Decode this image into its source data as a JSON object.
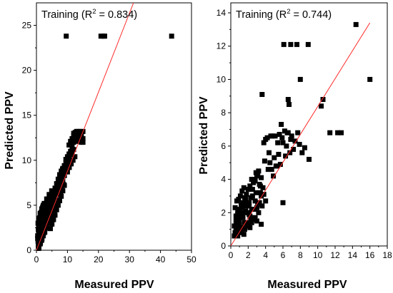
{
  "chart_data": [
    {
      "type": "scatter",
      "title_prefix": "Training (R",
      "title_sup": "2",
      "title_suffix": " = 0.834)",
      "xlabel": "Measured PPV",
      "ylabel": "Predicted PPV",
      "xlim": [
        0,
        50
      ],
      "ylim": [
        0,
        27.5
      ],
      "xticks": [
        0,
        10,
        20,
        30,
        40,
        50
      ],
      "yticks": [
        0,
        5,
        10,
        15,
        20,
        25
      ],
      "grid": false,
      "fit_line": {
        "x": [
          0,
          31.3
        ],
        "y": [
          0,
          27.5
        ]
      },
      "series": [
        {
          "marker": "square",
          "x": [
            9.6,
            20.8,
            21.5,
            22.0,
            43.6,
            0.6,
            1.1,
            1.6,
            2.1,
            2.6,
            3.1,
            3.6,
            4.1,
            4.6,
            5.1,
            5.6,
            6.1,
            6.6,
            7.1,
            0.8,
            1.3,
            1.8,
            2.3,
            2.8,
            3.3,
            3.8,
            4.3,
            4.8,
            5.3,
            5.8,
            6.3,
            6.8,
            7.3,
            7.8,
            8.3,
            0.5,
            1.0,
            1.5,
            2.0,
            2.5,
            3.0,
            3.5,
            4.0,
            4.5,
            5.0,
            5.5,
            6.0,
            6.5,
            7.0,
            7.5,
            0.7,
            1.2,
            1.7,
            2.2,
            2.7,
            3.2,
            3.7,
            4.2,
            4.7,
            5.2,
            5.7,
            6.2,
            0.4,
            0.9,
            1.4,
            1.9,
            2.4,
            2.9,
            3.4,
            3.9,
            4.4,
            4.9,
            0.6,
            1.1,
            1.6,
            2.1,
            2.6,
            3.1,
            3.6,
            4.1,
            0.8,
            1.3,
            1.8,
            2.3,
            2.8,
            3.3,
            0.5,
            1.0,
            1.5,
            2.0,
            2.5,
            0.7,
            1.2,
            1.7,
            2.2,
            0.4,
            0.9,
            1.4,
            0.6,
            1.1,
            4.5,
            5.0,
            5.5,
            6.0,
            6.5,
            7.0,
            7.5,
            8.0,
            8.5,
            9.0,
            5.8,
            6.3,
            6.8,
            7.3,
            7.8,
            8.3,
            8.8,
            7.0,
            7.5,
            8.0,
            8.5,
            9.0,
            9.5,
            10.0,
            10.5,
            8.0,
            8.5,
            9.0,
            9.5,
            10.0,
            10.5,
            11.0,
            8.4,
            9.0,
            9.6,
            10.2,
            10.8,
            11.4,
            12.0,
            9.5,
            10.0,
            10.5,
            11.0,
            11.5,
            10.0,
            10.6,
            11.2,
            11.8,
            12.4,
            10.5,
            11.0,
            11.5,
            12.0,
            12.5,
            13.0,
            13.5,
            14.0,
            14.5,
            15.0,
            12.5,
            13.0,
            13.5,
            14.0,
            14.5,
            15.0,
            11.5,
            12.0,
            12.5,
            13.0,
            13.5,
            14.0,
            14.5,
            15.0,
            12.0,
            12.5,
            13.0,
            13.5,
            14.0,
            14.5
          ],
          "y": [
            23.8,
            23.8,
            23.8,
            23.8,
            23.8,
            0.6,
            1.2,
            1.7,
            2.2,
            2.8,
            3.3,
            3.9,
            4.4,
            5.0,
            5.5,
            6.0,
            6.6,
            7.1,
            7.6,
            0.3,
            0.8,
            1.3,
            1.9,
            2.4,
            2.9,
            3.5,
            4.0,
            4.6,
            5.1,
            5.6,
            6.2,
            6.7,
            7.2,
            7.8,
            8.2,
            1.0,
            1.5,
            2.1,
            2.6,
            3.1,
            3.7,
            4.2,
            4.8,
            5.3,
            5.8,
            6.3,
            6.9,
            7.4,
            7.9,
            8.4,
            0.2,
            0.7,
            1.1,
            1.6,
            2.0,
            2.5,
            3.0,
            3.4,
            3.9,
            4.4,
            4.8,
            5.3,
            1.6,
            2.2,
            2.8,
            3.4,
            4.0,
            4.5,
            5.1,
            5.6,
            6.1,
            6.6,
            2.3,
            2.9,
            3.5,
            4.0,
            4.6,
            5.2,
            5.7,
            6.2,
            2.8,
            3.4,
            4.1,
            4.7,
            5.2,
            5.7,
            3.0,
            3.6,
            4.2,
            4.8,
            5.2,
            3.5,
            4.1,
            4.6,
            5.0,
            1.3,
            1.9,
            2.5,
            0.4,
            1.0,
            2.4,
            2.9,
            3.4,
            3.9,
            4.5,
            5.0,
            5.5,
            6.0,
            6.6,
            7.2,
            4.0,
            4.5,
            5.1,
            5.6,
            6.2,
            6.7,
            7.3,
            6.2,
            6.8,
            7.3,
            7.8,
            8.3,
            8.8,
            9.3,
            9.8,
            8.8,
            9.1,
            9.4,
            9.7,
            10.0,
            10.3,
            10.6,
            9.0,
            9.4,
            9.8,
            10.2,
            10.6,
            10.9,
            11.2,
            10.1,
            10.4,
            10.7,
            11.0,
            11.3,
            8.7,
            9.2,
            9.6,
            10.0,
            10.4,
            11.7,
            12.1,
            12.4,
            12.7,
            13.0,
            13.2,
            13.2,
            13.2,
            13.2,
            13.2,
            12.3,
            12.4,
            12.5,
            12.6,
            12.5,
            12.4,
            11.8,
            12.0,
            12.1,
            12.2,
            12.2,
            12.1,
            12.0,
            12.0,
            13.0,
            13.1,
            13.2,
            13.1,
            13.0,
            12.9
          ]
        }
      ]
    },
    {
      "type": "scatter",
      "title_prefix": "Training (R",
      "title_sup": "2",
      "title_suffix": " = 0.744)",
      "xlabel": "Measured PPV",
      "ylabel": "Predicted PPV",
      "xlim": [
        0,
        18
      ],
      "ylim": [
        0,
        14.6
      ],
      "xticks": [
        0,
        2,
        4,
        6,
        8,
        10,
        12,
        14,
        16,
        18
      ],
      "yticks": [
        0,
        2,
        4,
        6,
        8,
        10,
        12,
        14
      ],
      "grid": false,
      "fit_line": {
        "x": [
          0,
          16.0
        ],
        "y": [
          0,
          13.4
        ]
      },
      "series": [
        {
          "marker": "square",
          "x": [
            6.1,
            6.9,
            7.6,
            8.9,
            14.4,
            16.0,
            8.0,
            3.6,
            6.6,
            6.7,
            10.6,
            10.4,
            11.4,
            12.3,
            12.7,
            7.7,
            6.5,
            5.6,
            5.1,
            4.8,
            4.6,
            4.2,
            4.0,
            3.8,
            5.8,
            6.2,
            6.0,
            6.6,
            7.0,
            7.4,
            7.9,
            8.2,
            8.5,
            9.0,
            7.2,
            6.8,
            6.3,
            5.5,
            5.0,
            4.4,
            3.9,
            4.5,
            5.2,
            5.4,
            5.9,
            6.4,
            6.9,
            4.7,
            3.5,
            3.2,
            3.0,
            2.8,
            2.6,
            2.4,
            2.2,
            2.0,
            1.8,
            1.6,
            1.4,
            1.2,
            1.0,
            0.8,
            0.6,
            0.4,
            0.5,
            0.7,
            0.9,
            1.1,
            1.3,
            1.5,
            1.7,
            1.9,
            2.1,
            2.3,
            2.5,
            2.7,
            2.9,
            3.1,
            3.3,
            3.4,
            2.0,
            2.5,
            3.0,
            3.5,
            1.5,
            1.0,
            0.6,
            0.8,
            1.2,
            1.6,
            2.2,
            2.6,
            3.0,
            3.3,
            2.8,
            2.4,
            1.8,
            1.4,
            1.0,
            0.5,
            0.7,
            1.1,
            1.5,
            1.9,
            2.3,
            2.7,
            3.1,
            3.5,
            3.7,
            1.3,
            1.7,
            2.1,
            0.9,
            0.6,
            0.4,
            0.8,
            1.2,
            1.6,
            2.0,
            2.4,
            2.8,
            3.2,
            3.6,
            4.0,
            3.8,
            3.4,
            2.9,
            2.5,
            2.1,
            1.7,
            1.3,
            0.9,
            4.3,
            4.9,
            5.3,
            5.7,
            6.0,
            0.5,
            0.7,
            1.0,
            1.4,
            1.8,
            2.2
          ],
          "y": [
            12.1,
            12.1,
            12.1,
            12.1,
            13.3,
            10.0,
            10.0,
            9.1,
            8.8,
            8.5,
            8.8,
            8.4,
            6.8,
            6.8,
            6.8,
            6.8,
            6.8,
            6.7,
            6.6,
            6.6,
            6.6,
            6.5,
            6.4,
            6.2,
            7.3,
            6.9,
            6.2,
            6.8,
            6.6,
            6.3,
            6.1,
            5.6,
            5.9,
            5.2,
            5.8,
            5.6,
            5.4,
            5.5,
            5.3,
            5.6,
            5.1,
            5.0,
            4.8,
            6.2,
            6.5,
            6.0,
            6.4,
            4.6,
            4.1,
            4.5,
            4.2,
            3.9,
            3.8,
            4.0,
            3.6,
            3.4,
            3.1,
            2.9,
            2.6,
            2.5,
            2.2,
            1.9,
            1.5,
            1.2,
            2.3,
            2.7,
            2.8,
            3.0,
            3.3,
            3.5,
            2.8,
            2.6,
            2.4,
            2.9,
            3.4,
            4.0,
            4.4,
            4.3,
            3.7,
            3.2,
            2.0,
            1.7,
            1.5,
            1.3,
            1.0,
            1.5,
            1.8,
            2.1,
            1.8,
            1.4,
            1.1,
            1.6,
            2.3,
            2.6,
            2.7,
            2.2,
            2.0,
            1.7,
            1.2,
            0.8,
            1.0,
            0.9,
            0.7,
            1.3,
            1.6,
            2.2,
            2.5,
            3.0,
            3.5,
            2.3,
            2.1,
            1.9,
            1.6,
            1.1,
            0.6,
            0.6,
            0.8,
            1.0,
            1.2,
            1.4,
            1.7,
            2.0,
            2.4,
            2.7,
            3.1,
            3.6,
            3.2,
            3.0,
            2.6,
            2.4,
            2.0,
            1.4,
            4.6,
            4.2,
            4.8,
            4.9,
            2.6,
            0.8,
            0.9,
            1.3,
            1.1,
            1.4,
            1.8
          ]
        }
      ]
    }
  ]
}
